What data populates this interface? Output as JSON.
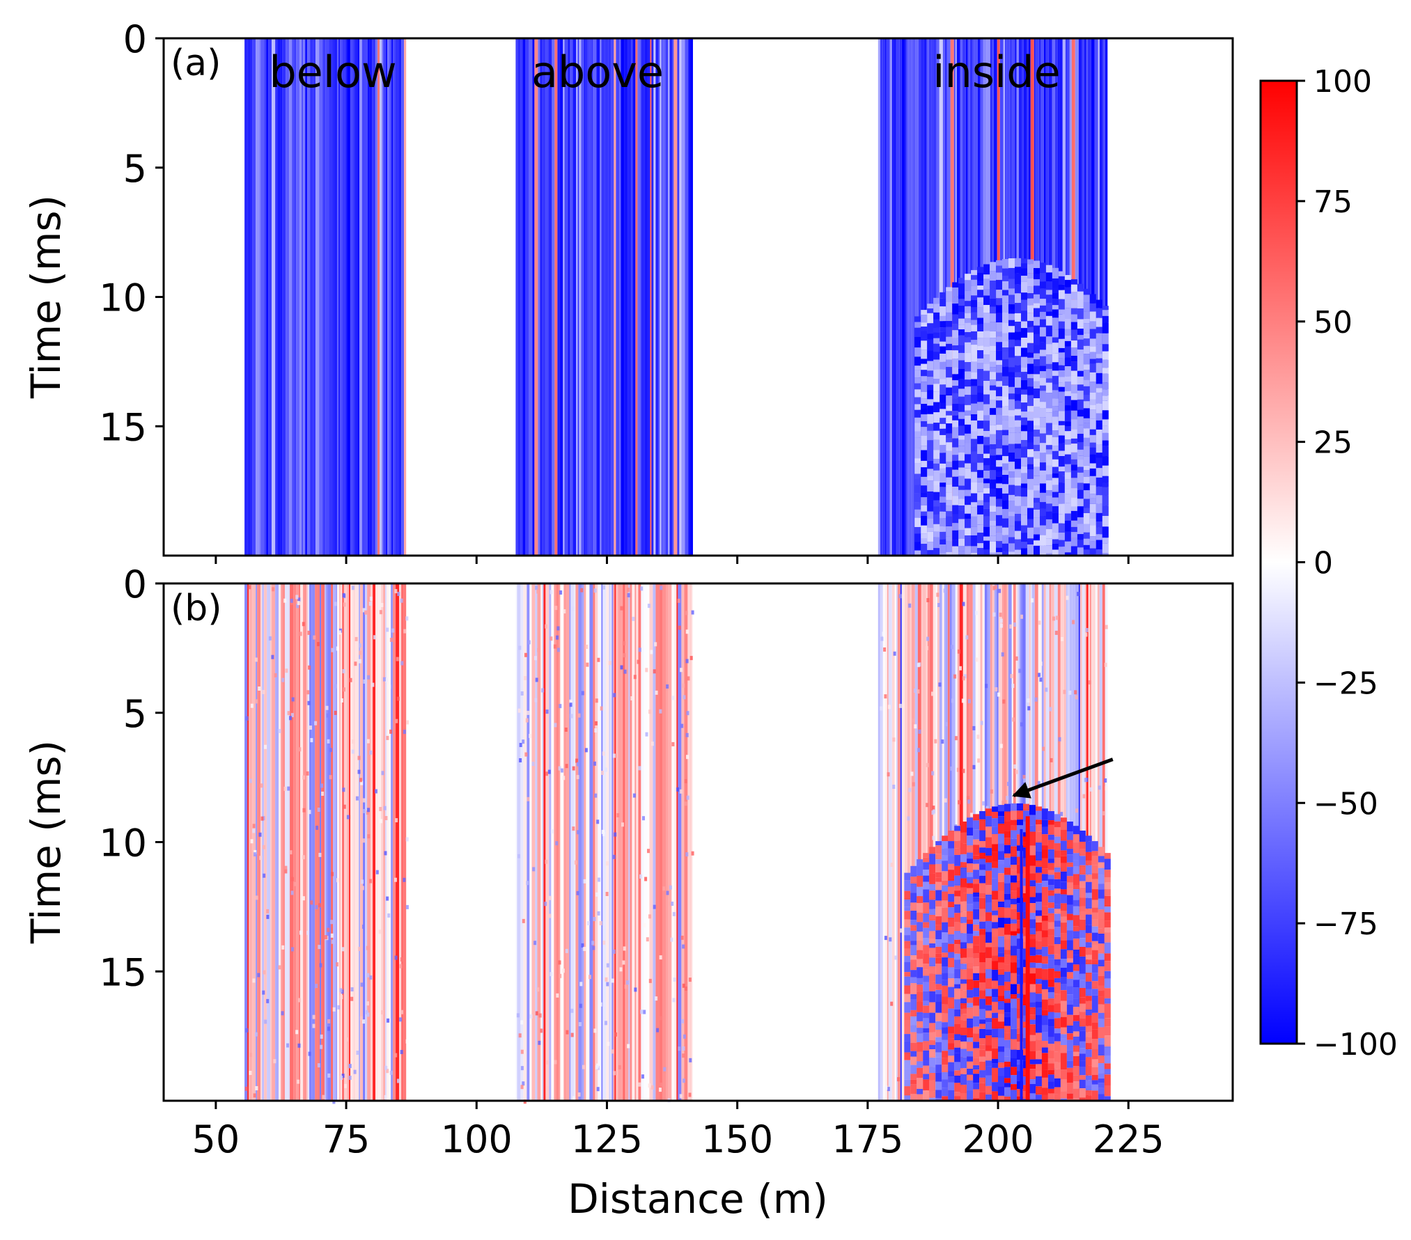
{
  "chart_data": {
    "type": "heatmap",
    "xlabel": "Distance (m)",
    "ylabel": "Time (ms)",
    "xlim": [
      40,
      245
    ],
    "ylim": [
      0,
      20
    ],
    "x_ticks": [
      50,
      75,
      100,
      125,
      150,
      175,
      200,
      225
    ],
    "y_ticks": [
      0,
      5,
      10,
      15
    ],
    "colorbar": {
      "min": -100,
      "max": 100,
      "ticks": [
        100,
        75,
        50,
        25,
        0,
        -25,
        -50,
        -75,
        -100
      ],
      "tick_labels": [
        "100",
        "75",
        "50",
        "25",
        "0",
        "−25",
        "−50",
        "−75",
        "−100"
      ],
      "colormap": "bwr",
      "color_low": "#0000ff",
      "color_mid": "#ffffff",
      "color_high": "#ff0000"
    },
    "panels": [
      {
        "label": "(a)",
        "dominant_value": -80,
        "regions": [
          {
            "name": "below",
            "x_range": [
              55.5,
              86.5
            ]
          },
          {
            "name": "above",
            "x_range": [
              107.5,
              141.5
            ]
          },
          {
            "name": "inside",
            "x_range": [
              177,
              221
            ]
          }
        ],
        "feature": {
          "description": "hyperbolic ringing",
          "apex": [
            203,
            8.5
          ],
          "extent_x": [
            184,
            220
          ],
          "extent_t": [
            8.5,
            20
          ]
        }
      },
      {
        "label": "(b)",
        "dominant_value": 0,
        "regions": [
          {
            "name": "below",
            "x_range": [
              55.5,
              86.5
            ]
          },
          {
            "name": "above",
            "x_range": [
              107.5,
              141.5
            ]
          },
          {
            "name": "inside",
            "x_range": [
              177,
              221
            ]
          }
        ],
        "feature": {
          "description": "hyperbolic event",
          "apex": [
            203,
            8.5
          ],
          "extent_x": [
            182,
            221
          ],
          "extent_t": [
            8.5,
            20
          ]
        },
        "annotation": {
          "type": "arrow",
          "from": [
            222,
            6.8
          ],
          "to": [
            203,
            8.2
          ]
        }
      }
    ]
  }
}
